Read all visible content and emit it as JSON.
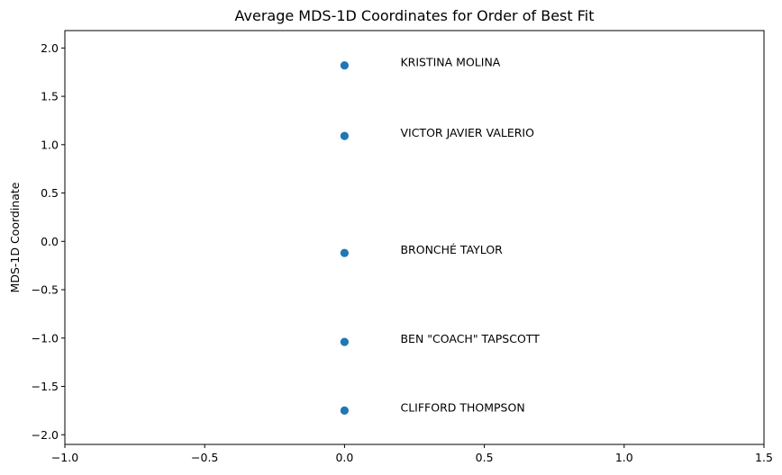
{
  "chart_data": {
    "type": "scatter",
    "title": "Average MDS-1D Coordinates for Order of Best Fit",
    "xlabel": "",
    "ylabel": "MDS-1D Coordinate",
    "xlim": [
      -1.0,
      1.5
    ],
    "ylim": [
      -2.1,
      2.18
    ],
    "xticks": [
      -1.0,
      -0.5,
      0.0,
      0.5,
      1.0,
      1.5
    ],
    "xtick_labels": [
      "−1.0",
      "−0.5",
      "0.0",
      "0.5",
      "1.0",
      "1.5"
    ],
    "yticks": [
      -2.0,
      -1.5,
      -1.0,
      -0.5,
      0.0,
      0.5,
      1.0,
      1.5,
      2.0
    ],
    "ytick_labels": [
      "−2.0",
      "−1.5",
      "−1.0",
      "−0.5",
      "0.0",
      "0.5",
      "1.0",
      "1.5",
      "2.0"
    ],
    "grid": false,
    "marker_color": "#1f77b4",
    "label_x_offset": 0.2,
    "points": [
      {
        "name": "KRISTINA MOLINA",
        "x": 0.0,
        "y": 1.82
      },
      {
        "name": "VICTOR JAVIER VALERIO",
        "x": 0.0,
        "y": 1.09
      },
      {
        "name": "BRONCHÉ TAYLOR",
        "x": 0.0,
        "y": -0.12
      },
      {
        "name": "BEN \"COACH\" TAPSCOTT",
        "x": 0.0,
        "y": -1.04
      },
      {
        "name": "CLIFFORD THOMPSON",
        "x": 0.0,
        "y": -1.75
      }
    ]
  }
}
